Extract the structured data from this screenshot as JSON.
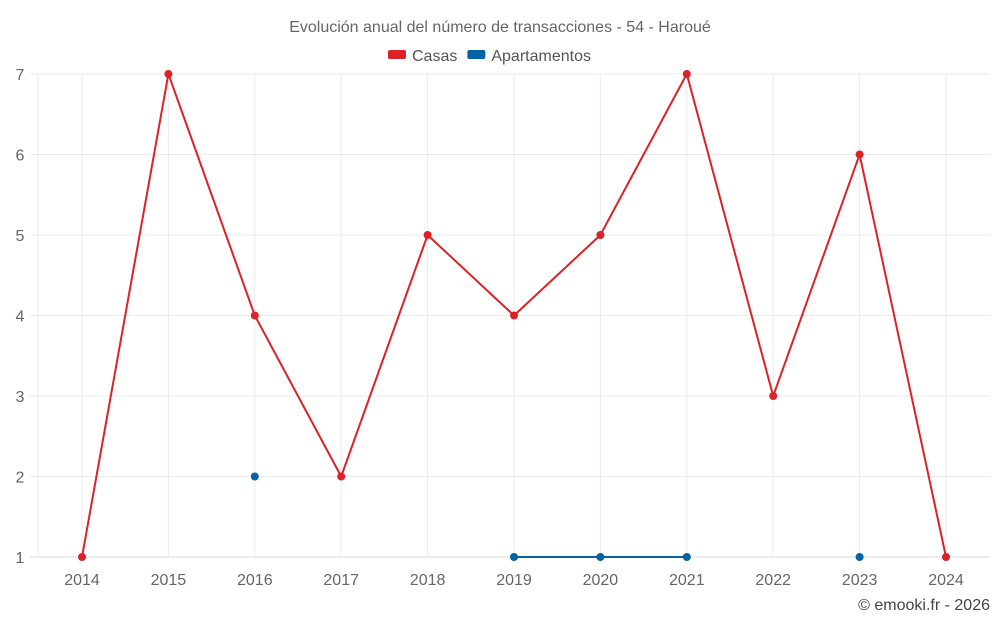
{
  "chart_data": {
    "type": "line",
    "title": "Evolución anual del número de transacciones - 54 - Haroué",
    "categories": [
      "2014",
      "2015",
      "2016",
      "2017",
      "2018",
      "2019",
      "2020",
      "2021",
      "2022",
      "2023",
      "2024"
    ],
    "series": [
      {
        "name": "Casas",
        "color": "#dc2227",
        "values": [
          1,
          7,
          4,
          2,
          5,
          4,
          5,
          7,
          3,
          6,
          1
        ]
      },
      {
        "name": "Apartamentos",
        "color": "#0463a3",
        "values": [
          null,
          null,
          2,
          null,
          null,
          1,
          1,
          1,
          null,
          1,
          null
        ]
      }
    ],
    "yticks": [
      1,
      2,
      3,
      4,
      5,
      6,
      7
    ],
    "ylim": [
      1,
      7
    ],
    "xlabel": "",
    "ylabel": "",
    "grid": true,
    "legend": "top-center"
  },
  "credit": "© emooki.fr - 2026"
}
